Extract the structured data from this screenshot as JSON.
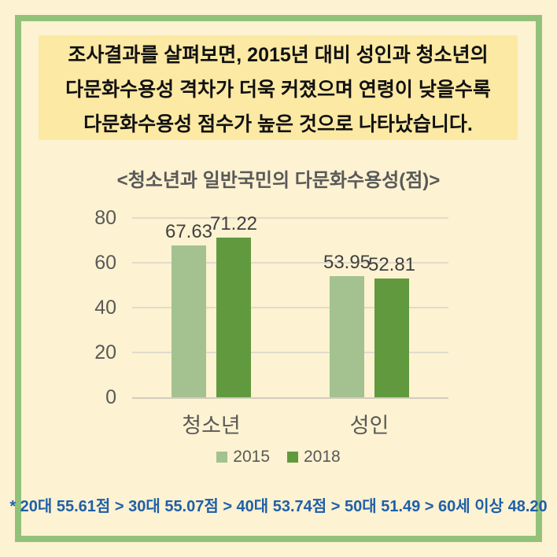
{
  "summary_box": {
    "lines": [
      "조사결과를 살펴보면, 2015년 대비 성인과 청소년의",
      "다문화수용성 격차가 더욱 커졌으며 연령이 낮을수록",
      "다문화수용성 점수가 높은 것으로 나타났습니다."
    ]
  },
  "chart_data": {
    "type": "bar",
    "title": "<청소년과 일반국민의 다문화수용성(점)>",
    "categories": [
      "청소년",
      "성인"
    ],
    "series": [
      {
        "name": "2015",
        "values": [
          67.63,
          53.95
        ],
        "color": "#a3c290"
      },
      {
        "name": "2018",
        "values": [
          71.22,
          52.81
        ],
        "color": "#61993f"
      }
    ],
    "xlabel": "",
    "ylabel": "",
    "ylim": [
      0,
      80
    ],
    "yticks": [
      0,
      20,
      40,
      60,
      80
    ],
    "grid": true,
    "value_labels": true,
    "legend_position": "bottom"
  },
  "footnote": "* 20대 55.61점  >  30대 55.07점 >  40대 53.74점 > 50대 51.49 > 60세 이상 48.20",
  "colors": {
    "background": "#fdf2d1",
    "frame": "#92c27a",
    "summary_box_bg": "#fce9a3",
    "axis_text": "#595959",
    "value_label": "#404040",
    "footnote_text": "#1f5fa8",
    "gridline": "#e0dbcd",
    "axis_line": "#d2ccbe"
  }
}
